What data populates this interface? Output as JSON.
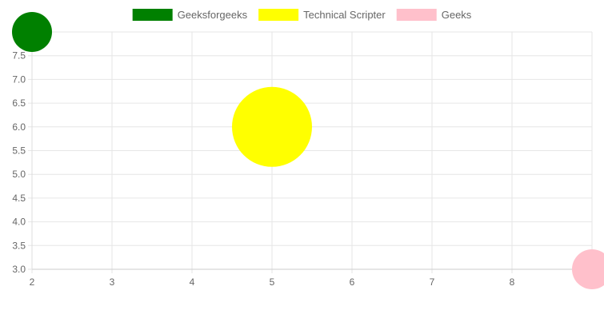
{
  "chart_data": {
    "type": "bubble",
    "legend_position": "top",
    "grid": true,
    "x_axis": {
      "min": 2,
      "max": 9,
      "step": 1,
      "ticks": [
        2,
        3,
        4,
        5,
        6,
        7,
        8
      ]
    },
    "y_axis": {
      "min": 3.0,
      "max": 8,
      "step": 0.5,
      "ticks": [
        "3.0",
        "3.5",
        "4.0",
        "4.5",
        "5.0",
        "5.5",
        "6.0",
        "6.5",
        "7.0",
        "7.5",
        "8"
      ]
    },
    "series": [
      {
        "name": "Geeksforgeeks",
        "color": "#008000",
        "x": 2,
        "y": 8,
        "r": 25
      },
      {
        "name": "Technical Scripter",
        "color": "#ffff00",
        "x": 5,
        "y": 6,
        "r": 50
      },
      {
        "name": "Geeks",
        "color": "#ffc0cb",
        "x": 9,
        "y": 3,
        "r": 25
      }
    ]
  }
}
